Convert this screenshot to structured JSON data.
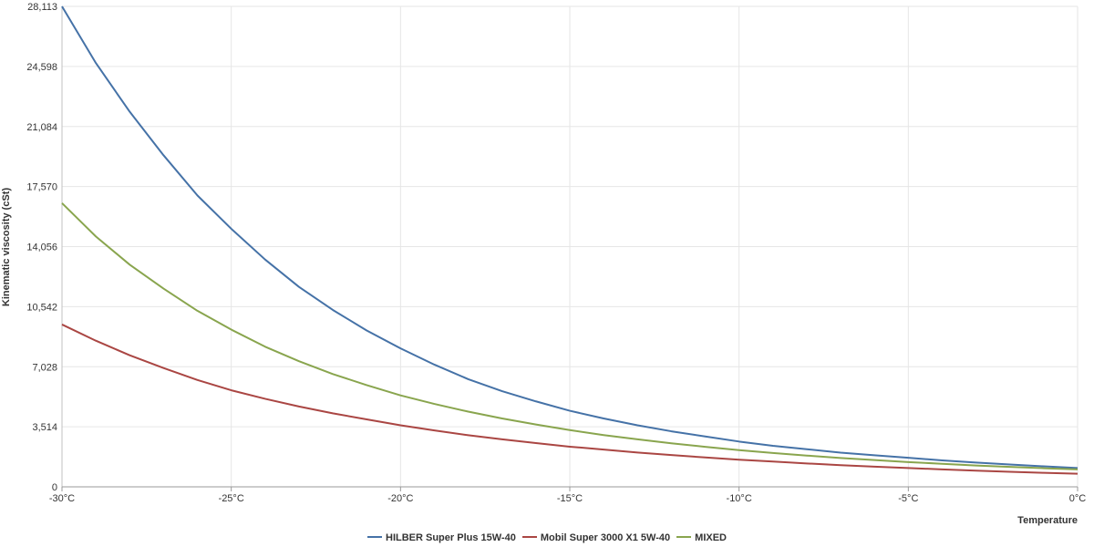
{
  "chart_data": {
    "type": "line",
    "title": "",
    "xlabel": "Temperature",
    "ylabel": "Kinematic viscosity (cSt)",
    "x": [
      -30,
      -29,
      -28,
      -27,
      -26,
      -25,
      -24,
      -23,
      -22,
      -21,
      -20,
      -19,
      -18,
      -17,
      -16,
      -15,
      -14,
      -13,
      -12,
      -11,
      -10,
      -9,
      -8,
      -7,
      -6,
      -5,
      -4,
      -3,
      -2,
      -1,
      0
    ],
    "xlim": [
      -30,
      0
    ],
    "ylim": [
      0,
      28113
    ],
    "x_tick_values": [
      -30,
      -25,
      -20,
      -15,
      -10,
      -5,
      0
    ],
    "x_tick_labels": [
      "-30°C",
      "-25°C",
      "-20°C",
      "-15°C",
      "-10°C",
      "-5°C",
      "0°C"
    ],
    "y_tick_values": [
      0,
      3514,
      7028,
      10542,
      14056,
      17570,
      21084,
      24598,
      28113
    ],
    "y_tick_labels": [
      "0",
      "3,514",
      "7,028",
      "10,542",
      "14,056",
      "17,570",
      "21,084",
      "24,598",
      "28,113"
    ],
    "grid": true,
    "legend_position": "bottom-center",
    "series": [
      {
        "name": "HILBER Super Plus 15W-40",
        "color": "#4572A7",
        "values": [
          28113,
          24800,
          21950,
          19400,
          17050,
          15100,
          13300,
          11700,
          10350,
          9150,
          8100,
          7150,
          6300,
          5600,
          5000,
          4450,
          4000,
          3600,
          3250,
          2950,
          2650,
          2400,
          2200,
          2000,
          1850,
          1700,
          1550,
          1420,
          1310,
          1200,
          1100
        ]
      },
      {
        "name": "Mobil Super 3000 X1 5W-40",
        "color": "#AA4643",
        "values": [
          9500,
          8550,
          7700,
          6950,
          6250,
          5650,
          5150,
          4700,
          4300,
          3950,
          3600,
          3300,
          3020,
          2780,
          2560,
          2350,
          2180,
          2010,
          1860,
          1720,
          1590,
          1480,
          1370,
          1270,
          1180,
          1100,
          1020,
          950,
          880,
          820,
          770
        ]
      },
      {
        "name": "MIXED",
        "color": "#89A54E",
        "values": [
          16600,
          14650,
          13000,
          11600,
          10300,
          9200,
          8200,
          7350,
          6600,
          5950,
          5350,
          4850,
          4400,
          4000,
          3650,
          3320,
          3030,
          2780,
          2550,
          2340,
          2150,
          1980,
          1830,
          1690,
          1570,
          1450,
          1350,
          1250,
          1170,
          1090,
          1020
        ]
      }
    ]
  }
}
